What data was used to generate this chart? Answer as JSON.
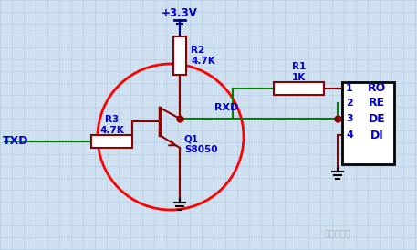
{
  "bg_color": "#cfe0f0",
  "grid_color": "#b0c8e0",
  "vcc_label": "+3.3V",
  "r1_label": "R1\n1K",
  "r2_label": "R2\n4.7K",
  "r3_label": "R3\n4.7K",
  "q1_label": "Q1\nS8050",
  "txd_label": "TXD",
  "rxd_label": "RXD",
  "ic_pins": [
    "1",
    "2",
    "3",
    "4"
  ],
  "ic_labels": [
    "RO",
    "RE",
    "DE",
    "DI"
  ],
  "green": "#008000",
  "dark_red": "#8b0000",
  "red": "#ff0000",
  "blue": "#0000cc",
  "black": "#000000",
  "navy": "#000080",
  "watermark": "科技老顽童"
}
